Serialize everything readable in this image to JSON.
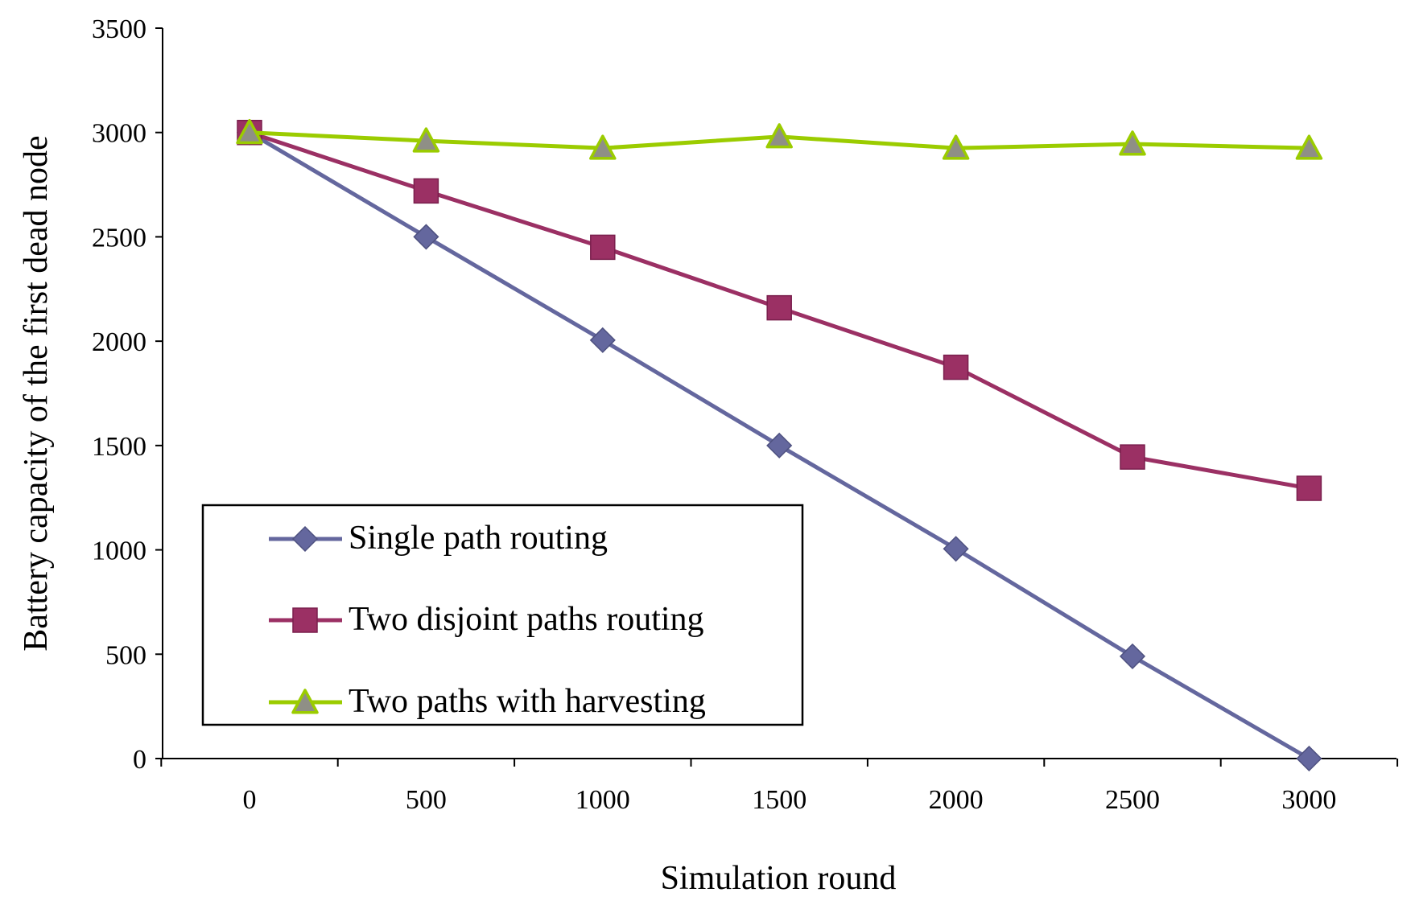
{
  "chart_data": {
    "type": "line",
    "title": "",
    "xlabel": "Simulation round",
    "ylabel": "Battery capacity of the first dead node",
    "categories": [
      "0",
      "500",
      "1000",
      "1500",
      "2000",
      "2500",
      "3000"
    ],
    "ylim": [
      0,
      3500
    ],
    "yticks": [
      "0",
      "500",
      "1000",
      "1500",
      "2000",
      "2500",
      "3000",
      "3500"
    ],
    "grid": false,
    "legend_position": "lower-left",
    "series": [
      {
        "name": "Single path routing",
        "marker": "diamond",
        "color": "#64679e",
        "values": [
          3000,
          2500,
          2005,
          1500,
          1005,
          490,
          0
        ]
      },
      {
        "name": "Two disjoint paths routing",
        "marker": "square",
        "color": "#9b3064",
        "values": [
          3000,
          2720,
          2450,
          2160,
          1875,
          1445,
          1295
        ]
      },
      {
        "name": "Two paths with harvesting",
        "marker": "triangle",
        "color": "#9bcc00",
        "marker_fill": "#8f8f86",
        "values": [
          3000,
          2960,
          2925,
          2980,
          2925,
          2945,
          2925
        ]
      }
    ]
  }
}
